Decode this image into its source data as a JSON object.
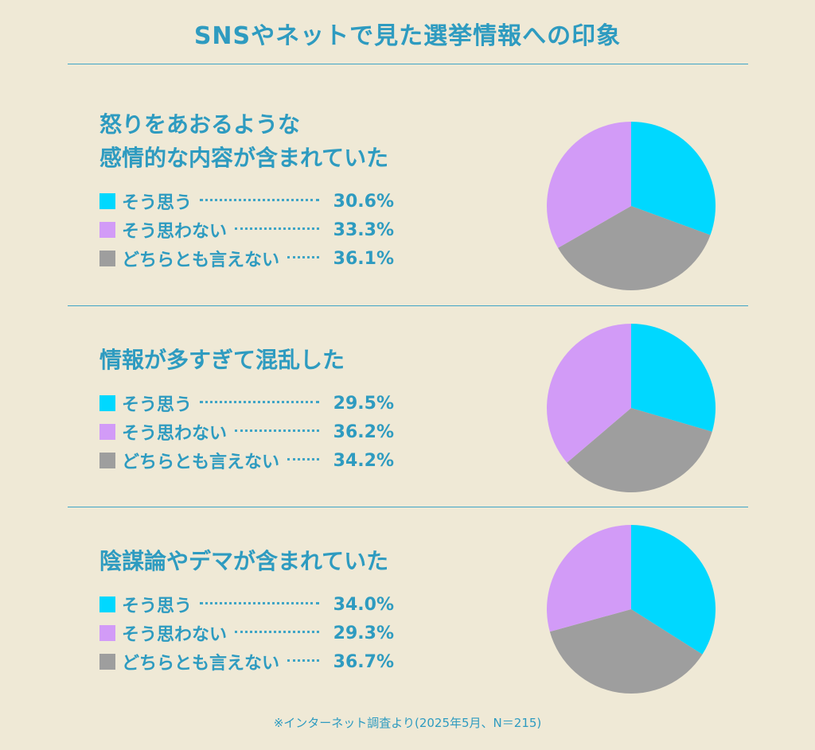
{
  "title": "SNSやネットで見た選挙情報への印象",
  "footnote": "※インターネット調査より(2025年5月、N＝215)",
  "colors": {
    "agree": "#00d8ff",
    "disagree": "#d29bf7",
    "neutral": "#9e9e9e",
    "text": "#2e9bc0",
    "background": "#efe9d6"
  },
  "chart_data": [
    {
      "type": "pie",
      "title_lines": [
        "怒りをあおるような",
        "感情的な内容が含まれていた"
      ],
      "categories": [
        "そう思う",
        "そう思わない",
        "どちらとも言えない"
      ],
      "values": [
        30.6,
        33.3,
        36.1
      ],
      "value_labels": [
        "30.6%",
        "33.3%",
        "36.1%"
      ]
    },
    {
      "type": "pie",
      "title_lines": [
        "情報が多すぎて混乱した"
      ],
      "categories": [
        "そう思う",
        "そう思わない",
        "どちらとも言えない"
      ],
      "values": [
        29.5,
        36.2,
        34.2
      ],
      "value_labels": [
        "29.5%",
        "36.2%",
        "34.2%"
      ]
    },
    {
      "type": "pie",
      "title_lines": [
        "陰謀論やデマが含まれていた"
      ],
      "categories": [
        "そう思う",
        "そう思わない",
        "どちらとも言えない"
      ],
      "values": [
        34.0,
        29.3,
        36.7
      ],
      "value_labels": [
        "34.0%",
        "29.3%",
        "36.7%"
      ]
    }
  ]
}
